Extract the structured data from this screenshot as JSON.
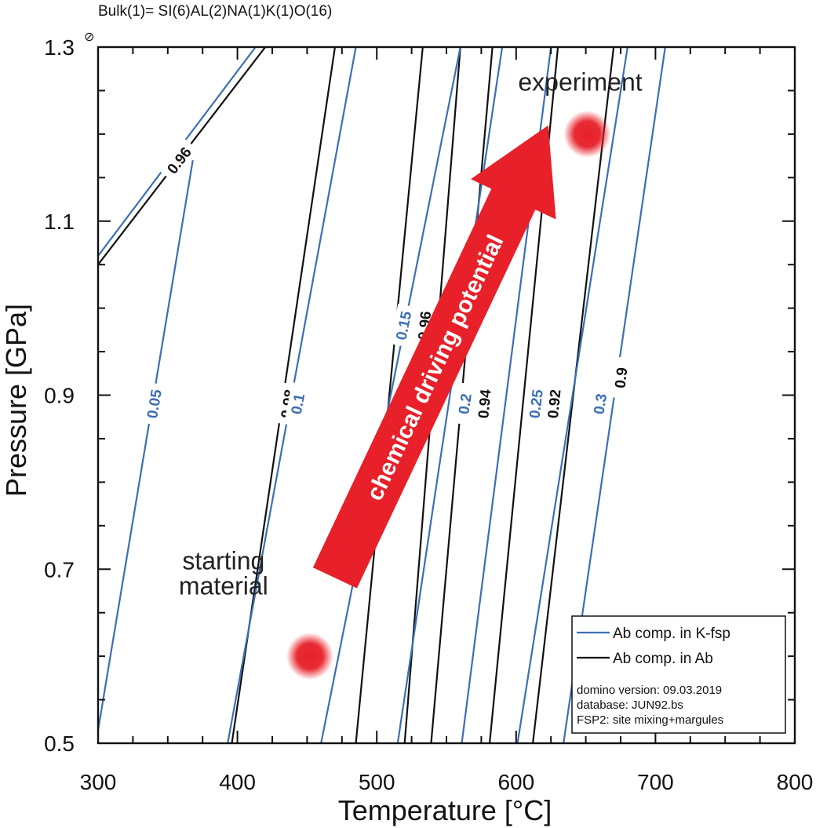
{
  "header_text": "Bulk(1)= SI(6)AL(2)NA(1)K(1)O(16)",
  "corner_mark": "⊘",
  "colors": {
    "blue": "#3b6fb6",
    "black": "#111111",
    "red": "#e8202a",
    "axis": "#111111"
  },
  "chart_data": {
    "type": "line",
    "title": "",
    "xlabel": "Temperature [°C]",
    "ylabel": "Pressure [GPa]",
    "xlim": [
      300,
      800
    ],
    "ylim": [
      0.5,
      1.3
    ],
    "xticks": [
      "300",
      "400",
      "500",
      "600",
      "700",
      "800"
    ],
    "yticks": [
      "0.5",
      "0.7",
      "0.9",
      "1.1",
      "1.3"
    ],
    "grid": false,
    "legend_position": "bottom-right",
    "series": [
      {
        "name": "Ab comp. in K-fsp",
        "color": "#3b6fb6"
      },
      {
        "name": "Ab comp. in Ab",
        "color": "#111111"
      }
    ],
    "kfsp_isopleths": [
      {
        "label": "0.05",
        "points": [
          [
            300,
            0.515
          ],
          [
            368,
            1.17
          ]
        ],
        "label_at": [
          340,
          0.89
        ]
      },
      {
        "label": "0.1",
        "points": [
          [
            393,
            0.5
          ],
          [
            485,
            1.3
          ]
        ],
        "label_at": [
          443,
          0.89
        ]
      },
      {
        "label": "0.15",
        "points": [
          [
            460,
            0.5
          ],
          [
            560,
            1.3
          ]
        ],
        "label_at": [
          519,
          0.98
        ]
      },
      {
        "label": "0.2",
        "points": [
          [
            515,
            0.5
          ],
          [
            590,
            1.3
          ]
        ],
        "label_at": [
          563,
          0.89
        ]
      },
      {
        "label": "0.25",
        "points": [
          [
            561,
            0.5
          ],
          [
            625,
            1.3
          ]
        ],
        "label_at": [
          614,
          0.89
        ]
      },
      {
        "label": "0.3",
        "points": [
          [
            601,
            0.5
          ],
          [
            680,
            1.3
          ]
        ],
        "label_at": [
          660,
          0.89
        ]
      },
      {
        "label": "",
        "points": [
          [
            300,
            1.06
          ],
          [
            413,
            1.3
          ]
        ]
      },
      {
        "label": "",
        "points": [
          [
            634,
            0.5
          ],
          [
            707,
            1.3
          ]
        ]
      }
    ],
    "ab_isopleths": [
      {
        "label": "0.96",
        "points": [
          [
            300,
            1.05
          ],
          [
            420,
            1.3
          ]
        ],
        "label_at": [
          358,
          1.17
        ]
      },
      {
        "label": "0.98",
        "points": [
          [
            396,
            0.5
          ],
          [
            470,
            1.3
          ]
        ],
        "label_at": [
          436,
          0.89
        ]
      },
      {
        "label": "0.96",
        "points": [
          [
            485,
            0.5
          ],
          [
            533,
            1.3
          ]
        ],
        "label_at": [
          534,
          0.98
        ]
      },
      {
        "label": "0.94",
        "points": [
          [
            539,
            0.5
          ],
          [
            583,
            1.3
          ]
        ],
        "label_at": [
          577,
          0.89
        ]
      },
      {
        "label": "0.92",
        "points": [
          [
            581,
            0.5
          ],
          [
            630,
            1.3
          ]
        ],
        "label_at": [
          627,
          0.89
        ]
      },
      {
        "label": "0.9",
        "points": [
          [
            612,
            0.5
          ],
          [
            670,
            1.3
          ]
        ],
        "label_at": [
          675,
          0.92
        ]
      },
      {
        "label": "",
        "points": [
          [
            520,
            0.5
          ],
          [
            560,
            1.3
          ]
        ]
      }
    ],
    "annotations": [
      {
        "id": "starting",
        "lines": [
          "starting",
          "material"
        ],
        "point": [
          452,
          0.6
        ],
        "text_at": [
          390,
          0.7
        ]
      },
      {
        "id": "experiment",
        "lines": [
          "experiment"
        ],
        "point": [
          651,
          1.2
        ],
        "text_at": [
          646,
          1.25
        ]
      },
      {
        "id": "arrow",
        "text": "chemical driving potential",
        "from": [
          470,
          0.69
        ],
        "to": [
          623,
          1.21
        ]
      }
    ],
    "info_lines": [
      "domino version: 09.03.2019",
      "database: JUN92.bs",
      "FSP2: site mixing+margules"
    ]
  }
}
